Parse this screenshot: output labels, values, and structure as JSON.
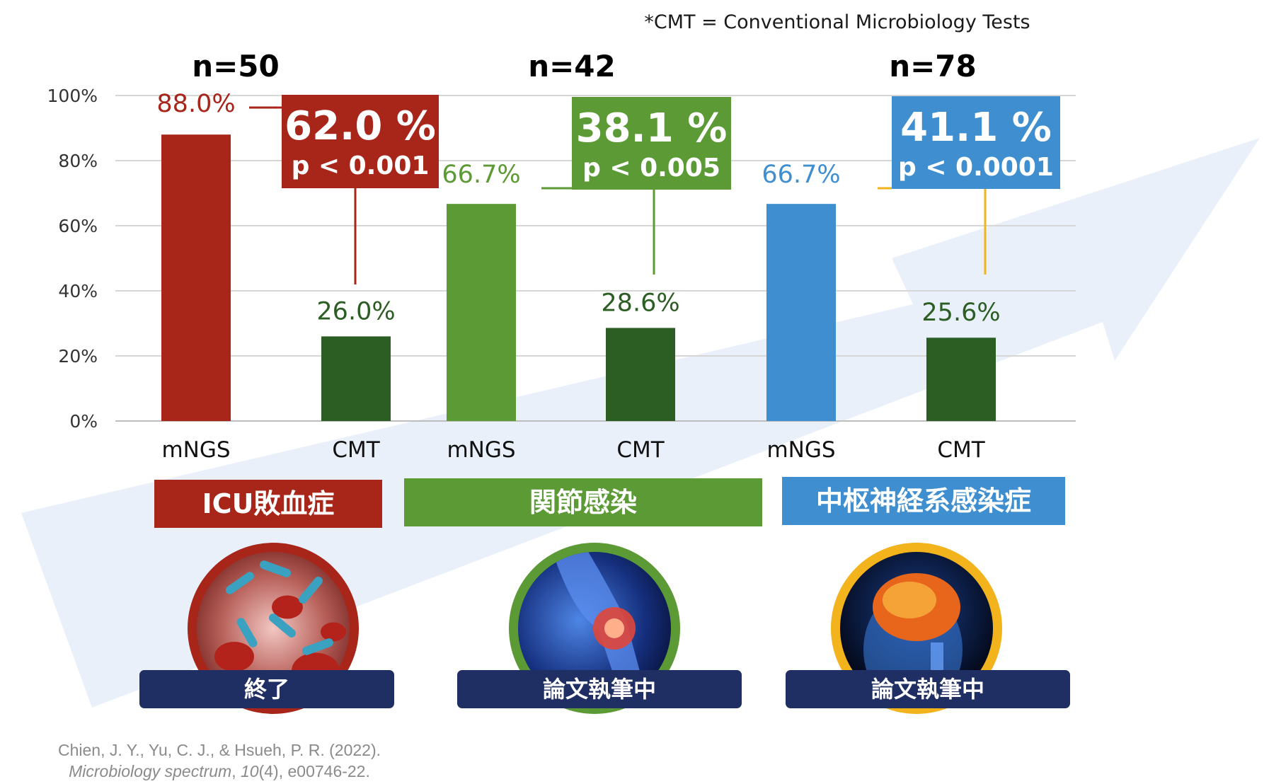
{
  "footnote": "*CMT = Conventional Microbiology Tests",
  "reference": {
    "authors": "Chien, J. Y., Yu, C. J., & Hsueh, P. R. (2022).",
    "journal": "Microbiology spectrum",
    "volume": "10",
    "issue_pages": "(4), e00746-22."
  },
  "colors": {
    "red": "#A8251A",
    "green": "#5B9A35",
    "blue": "#3F8FD0",
    "dark_green": "#2C5E24",
    "navy": "#1F2E63",
    "yellow": "#F2B31C",
    "arrow": "#EAF0FA"
  },
  "chart_data": {
    "type": "bar",
    "y_ticks": [
      "100%",
      "80%",
      "60%",
      "40%",
      "20%",
      "0%"
    ],
    "ylim": [
      0,
      100
    ],
    "grid": true,
    "groups": [
      {
        "key": "icu",
        "n_label": "n=50",
        "category": "ICU敗血症",
        "status": "終了",
        "color": "#A8251A",
        "ring_color": "#A8251A",
        "image": "bacteria-in-blood-image",
        "bars": [
          {
            "label": "mNGS",
            "value": 88.0,
            "value_label": "88.0%"
          },
          {
            "label": "CMT",
            "value": 26.0,
            "value_label": "26.0%"
          }
        ],
        "diff_box": {
          "percent": "62.0 %",
          "p": "p < 0.001"
        }
      },
      {
        "key": "joint",
        "n_label": "n=42",
        "category": "関節感染",
        "status": "論文執筆中",
        "color": "#5B9A35",
        "ring_color": "#5B9A35",
        "image": "knee-joint-image",
        "bars": [
          {
            "label": "mNGS",
            "value": 66.7,
            "value_label": "66.7%"
          },
          {
            "label": "CMT",
            "value": 28.6,
            "value_label": "28.6%"
          }
        ],
        "diff_box": {
          "percent": "38.1 %",
          "p": "p < 0.005"
        }
      },
      {
        "key": "cns",
        "n_label": "n=78",
        "category": "中枢神経系感染症",
        "status": "論文執筆中",
        "color": "#3F8FD0",
        "ring_color": "#F2B31C",
        "image": "brain-head-image",
        "bars": [
          {
            "label": "mNGS",
            "value": 66.7,
            "value_label": "66.7%"
          },
          {
            "label": "CMT",
            "value": 25.6,
            "value_label": "25.6%"
          }
        ],
        "diff_box": {
          "percent": "41.1 %",
          "p": "p < 0.0001"
        }
      }
    ]
  }
}
